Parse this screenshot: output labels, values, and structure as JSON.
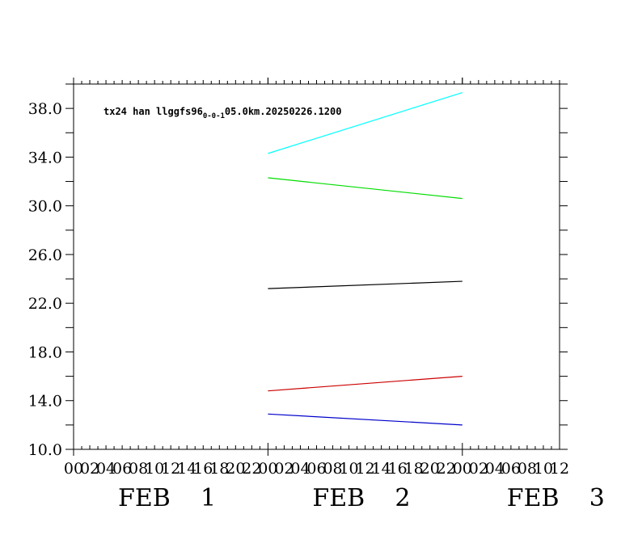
{
  "chart_data": {
    "type": "line",
    "title_main": "tx24 han llggfs96",
    "title_sub": "0-0-1",
    "title_tail": "05.0km.20250226.1200",
    "ylim": [
      10.0,
      40.0
    ],
    "yticks": [
      "10.0",
      "14.0",
      "18.0",
      "22.0",
      "26.0",
      "30.0",
      "34.0",
      "38.0"
    ],
    "xlim": [
      0,
      60
    ],
    "hour_labels": [
      "00",
      "02",
      "04",
      "06",
      "08",
      "10",
      "12",
      "14",
      "16",
      "18",
      "20",
      "22",
      "00",
      "02",
      "04",
      "06",
      "08",
      "10",
      "12",
      "14",
      "16",
      "18",
      "20",
      "22",
      "00",
      "02",
      "04",
      "06",
      "08",
      "10",
      "12"
    ],
    "day_labels": [
      {
        "month": "FEB",
        "day": "1"
      },
      {
        "month": "FEB",
        "day": "2"
      },
      {
        "month": "FEB",
        "day": "3"
      }
    ],
    "series": [
      {
        "color": "#00ffff",
        "x": [
          24,
          48
        ],
        "y": [
          34.3,
          39.3
        ]
      },
      {
        "color": "#00dd00",
        "x": [
          24,
          48
        ],
        "y": [
          32.3,
          30.6
        ]
      },
      {
        "color": "#000000",
        "x": [
          24,
          48
        ],
        "y": [
          23.2,
          23.8
        ]
      },
      {
        "color": "#cc0000",
        "x": [
          24,
          48
        ],
        "y": [
          14.8,
          16.0
        ]
      },
      {
        "color": "#0000cc",
        "x": [
          24,
          48
        ],
        "y": [
          12.9,
          12.0
        ]
      }
    ]
  }
}
